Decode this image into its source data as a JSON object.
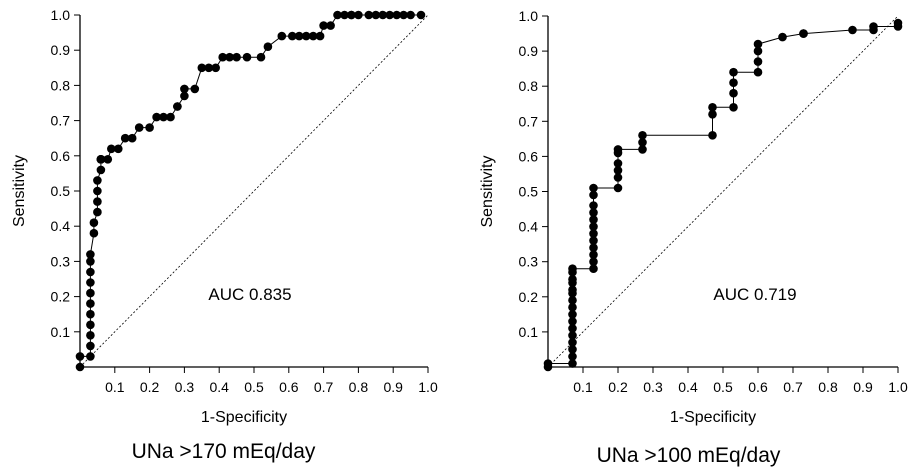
{
  "chart_data": [
    {
      "type": "line",
      "title": "UNa >170 mEq/day",
      "xlabel": "1-Specificity",
      "ylabel": "Sensitivity",
      "annotation": "AUC 0.835",
      "xlim": [
        0,
        1.0
      ],
      "ylim": [
        0,
        1.0
      ],
      "x_ticks": [
        "0.1",
        "0.2",
        "0.3",
        "0.4",
        "0.5",
        "0.6",
        "0.7",
        "0.8",
        "0.9",
        "1.0"
      ],
      "y_ticks": [
        "0.1",
        "0.2",
        "0.3",
        "0.4",
        "0.5",
        "0.6",
        "0.7",
        "0.8",
        "0.9",
        "1.0"
      ],
      "grid": false,
      "reference_line": "diagonal",
      "x": [
        0,
        0,
        0.03,
        0.03,
        0.03,
        0.03,
        0.03,
        0.03,
        0.03,
        0.03,
        0.03,
        0.03,
        0.03,
        0.04,
        0.04,
        0.05,
        0.05,
        0.05,
        0.05,
        0.06,
        0.06,
        0.06,
        0.06,
        0.06,
        0.08,
        0.09,
        0.11,
        0.13,
        0.15,
        0.17,
        0.2,
        0.22,
        0.24,
        0.26,
        0.28,
        0.28,
        0.3,
        0.3,
        0.33,
        0.35,
        0.37,
        0.39,
        0.41,
        0.43,
        0.45,
        0.48,
        0.52,
        0.54,
        0.58,
        0.61,
        0.63,
        0.65,
        0.67,
        0.69,
        0.7,
        0.72,
        0.74,
        0.76,
        0.78,
        0.78,
        0.8,
        0.83,
        0.85,
        0.87,
        0.89,
        0.91,
        0.93,
        0.95,
        0.98
      ],
      "y": [
        0,
        0.03,
        0.03,
        0.06,
        0.09,
        0.12,
        0.15,
        0.18,
        0.21,
        0.24,
        0.27,
        0.3,
        0.32,
        0.38,
        0.41,
        0.44,
        0.47,
        0.5,
        0.53,
        0.56,
        0.59,
        0.59,
        0.59,
        0.59,
        0.59,
        0.62,
        0.62,
        0.65,
        0.65,
        0.68,
        0.68,
        0.71,
        0.71,
        0.71,
        0.74,
        0.74,
        0.77,
        0.79,
        0.79,
        0.85,
        0.85,
        0.85,
        0.88,
        0.88,
        0.88,
        0.88,
        0.88,
        0.91,
        0.94,
        0.94,
        0.94,
        0.94,
        0.94,
        0.94,
        0.97,
        0.97,
        1.0,
        1.0,
        1.0,
        1.0,
        1.0,
        1.0,
        1.0,
        1.0,
        1.0,
        1.0,
        1.0,
        1.0,
        1.0
      ]
    },
    {
      "type": "line",
      "title": "UNa >100 mEq/day",
      "xlabel": "1-Specificity",
      "ylabel": "Sensitivity",
      "annotation": "AUC 0.719",
      "xlim": [
        0,
        1.0
      ],
      "ylim": [
        0,
        1.0
      ],
      "x_ticks": [
        "0.1",
        "0.2",
        "0.3",
        "0.4",
        "0.5",
        "0.6",
        "0.7",
        "0.8",
        "0.9",
        "1.0"
      ],
      "y_ticks": [
        "0.1",
        "0.2",
        "0.3",
        "0.4",
        "0.5",
        "0.6",
        "0.7",
        "0.8",
        "0.9",
        "1.0"
      ],
      "grid": false,
      "reference_line": "diagonal",
      "x": [
        0,
        0,
        0.07,
        0.07,
        0.07,
        0.07,
        0.07,
        0.07,
        0.07,
        0.07,
        0.07,
        0.07,
        0.07,
        0.07,
        0.07,
        0.07,
        0.07,
        0.07,
        0.13,
        0.13,
        0.13,
        0.13,
        0.13,
        0.13,
        0.13,
        0.13,
        0.13,
        0.13,
        0.13,
        0.13,
        0.2,
        0.2,
        0.2,
        0.2,
        0.2,
        0.2,
        0.27,
        0.27,
        0.27,
        0.47,
        0.47,
        0.47,
        0.53,
        0.53,
        0.53,
        0.53,
        0.6,
        0.6,
        0.6,
        0.6,
        0.67,
        0.73,
        0.73,
        0.87,
        0.93,
        0.93,
        1.0,
        1.0
      ],
      "y": [
        0,
        0.01,
        0.01,
        0.03,
        0.05,
        0.07,
        0.09,
        0.11,
        0.13,
        0.15,
        0.17,
        0.19,
        0.21,
        0.22,
        0.24,
        0.25,
        0.27,
        0.28,
        0.28,
        0.3,
        0.32,
        0.34,
        0.36,
        0.38,
        0.4,
        0.42,
        0.44,
        0.46,
        0.49,
        0.51,
        0.51,
        0.54,
        0.56,
        0.58,
        0.61,
        0.62,
        0.62,
        0.64,
        0.66,
        0.66,
        0.72,
        0.74,
        0.74,
        0.78,
        0.81,
        0.84,
        0.84,
        0.87,
        0.9,
        0.92,
        0.94,
        0.95,
        0.95,
        0.96,
        0.96,
        0.97,
        0.97,
        0.98
      ]
    }
  ]
}
